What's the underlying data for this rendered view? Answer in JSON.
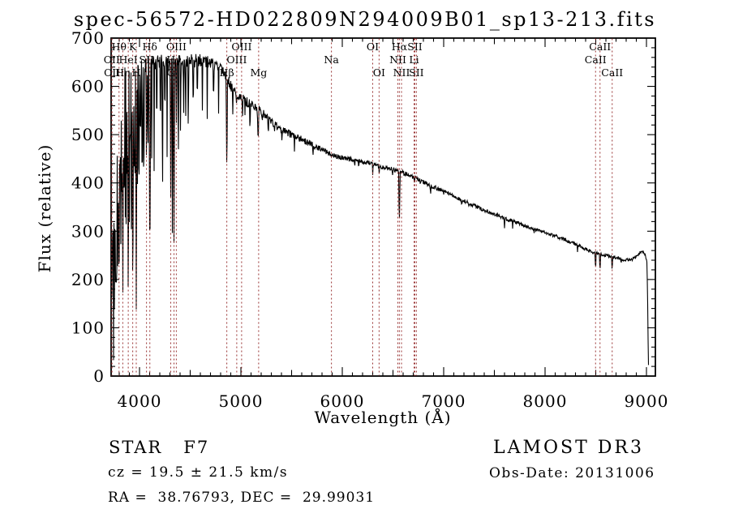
{
  "chart_data": {
    "type": "line",
    "title": "spec-56572-HD022809N294009B01_sp13-213.fits",
    "xlabel": "Wavelength (Å)",
    "ylabel": "Flux (relative)",
    "xlim": [
      3720,
      9088
    ],
    "ylim": [
      0,
      700
    ],
    "x_major_ticks": [
      4000,
      5000,
      6000,
      7000,
      8000,
      9000
    ],
    "x_minor_step": 100,
    "x_mid_step": 500,
    "y_major_ticks": [
      0,
      100,
      200,
      300,
      400,
      500,
      600,
      700
    ],
    "y_minor_step": 20,
    "grid": false,
    "line_color": "#000000",
    "marker_line_color": "#993333",
    "background_color": "#ffffff",
    "spectral_lines": [
      {
        "label": "Hθ",
        "wavelength": 3798,
        "row": 1
      },
      {
        "label": "K",
        "wavelength": 3933,
        "row": 1
      },
      {
        "label": "Hδ",
        "wavelength": 4102,
        "row": 1
      },
      {
        "label": "OIII",
        "wavelength": 4363,
        "row": 1
      },
      {
        "label": "OIII",
        "wavelength": 5007,
        "row": 1
      },
      {
        "label": "OI",
        "wavelength": 6300,
        "row": 1
      },
      {
        "label": "Hα",
        "wavelength": 6563,
        "row": 1
      },
      {
        "label": "SII",
        "wavelength": 6716,
        "row": 1
      },
      {
        "label": "CaII",
        "wavelength": 8542,
        "row": 1
      },
      {
        "label": "OII",
        "wavelength": 3726,
        "row": 2
      },
      {
        "label": "HeI",
        "wavelength": 3889,
        "row": 2
      },
      {
        "label": "SII",
        "wavelength": 4069,
        "row": 2
      },
      {
        "label": "Hγ",
        "wavelength": 4340,
        "row": 2
      },
      {
        "label": "OIII",
        "wavelength": 4959,
        "row": 2
      },
      {
        "label": "Na",
        "wavelength": 5893,
        "row": 2
      },
      {
        "label": "NII",
        "wavelength": 6548,
        "row": 2
      },
      {
        "label": "Li",
        "wavelength": 6708,
        "row": 2
      },
      {
        "label": "CaII",
        "wavelength": 8498,
        "row": 2
      },
      {
        "label": "OII",
        "wavelength": 3729,
        "row": 3
      },
      {
        "label": "Hη",
        "wavelength": 3835,
        "row": 3
      },
      {
        "label": "H",
        "wavelength": 3968,
        "row": 3
      },
      {
        "label": "G",
        "wavelength": 4308,
        "row": 3
      },
      {
        "label": "Hβ",
        "wavelength": 4861,
        "row": 3
      },
      {
        "label": "Mg",
        "wavelength": 5175,
        "row": 3
      },
      {
        "label": "OI",
        "wavelength": 6363,
        "row": 3
      },
      {
        "label": "NII",
        "wavelength": 6584,
        "row": 3
      },
      {
        "label": "SII",
        "wavelength": 6731,
        "row": 3
      },
      {
        "label": "CaII",
        "wavelength": 8662,
        "row": 3
      }
    ],
    "continuum": [
      [
        3720,
        480
      ],
      [
        3740,
        540
      ],
      [
        3760,
        575
      ],
      [
        3780,
        595
      ],
      [
        3800,
        610
      ],
      [
        3840,
        620
      ],
      [
        3880,
        628
      ],
      [
        3920,
        632
      ],
      [
        3960,
        628
      ],
      [
        4000,
        638
      ],
      [
        4060,
        645
      ],
      [
        4120,
        648
      ],
      [
        4200,
        652
      ],
      [
        4280,
        645
      ],
      [
        4360,
        650
      ],
      [
        4440,
        655
      ],
      [
        4520,
        652
      ],
      [
        4600,
        655
      ],
      [
        4700,
        648
      ],
      [
        4800,
        635
      ],
      [
        4860,
        618
      ],
      [
        4900,
        600
      ],
      [
        4950,
        588
      ],
      [
        5000,
        578
      ],
      [
        5100,
        562
      ],
      [
        5200,
        548
      ],
      [
        5300,
        528
      ],
      [
        5400,
        510
      ],
      [
        5500,
        500
      ],
      [
        5600,
        490
      ],
      [
        5700,
        480
      ],
      [
        5800,
        468
      ],
      [
        5900,
        458
      ],
      [
        6000,
        452
      ],
      [
        6100,
        448
      ],
      [
        6200,
        444
      ],
      [
        6300,
        440
      ],
      [
        6400,
        432
      ],
      [
        6500,
        428
      ],
      [
        6600,
        422
      ],
      [
        6700,
        412
      ],
      [
        6800,
        402
      ],
      [
        6900,
        392
      ],
      [
        7000,
        383
      ],
      [
        7100,
        373
      ],
      [
        7200,
        363
      ],
      [
        7300,
        353
      ],
      [
        7400,
        344
      ],
      [
        7500,
        335
      ],
      [
        7600,
        327
      ],
      [
        7700,
        319
      ],
      [
        7800,
        311
      ],
      [
        7900,
        304
      ],
      [
        8000,
        297
      ],
      [
        8100,
        290
      ],
      [
        8200,
        282
      ],
      [
        8300,
        273
      ],
      [
        8400,
        263
      ],
      [
        8500,
        254
      ],
      [
        8600,
        250
      ],
      [
        8700,
        245
      ],
      [
        8800,
        240
      ],
      [
        8860,
        242
      ],
      [
        8920,
        252
      ],
      [
        8960,
        260
      ],
      [
        8990,
        250
      ],
      [
        9005,
        235
      ],
      [
        9012,
        150
      ],
      [
        9018,
        40
      ],
      [
        9022,
        8
      ]
    ],
    "absorption_features": [
      [
        3722,
        120,
        5
      ],
      [
        3727,
        60,
        4
      ],
      [
        3733,
        180,
        4
      ],
      [
        3738,
        90,
        4
      ],
      [
        3744,
        30,
        5
      ],
      [
        3752,
        140,
        4
      ],
      [
        3758,
        70,
        4
      ],
      [
        3764,
        200,
        4
      ],
      [
        3770,
        18,
        6
      ],
      [
        3777,
        110,
        4
      ],
      [
        3784,
        230,
        4
      ],
      [
        3790,
        150,
        4
      ],
      [
        3798,
        65,
        6
      ],
      [
        3806,
        280,
        4
      ],
      [
        3815,
        180,
        4
      ],
      [
        3823,
        320,
        4
      ],
      [
        3830,
        240,
        4
      ],
      [
        3835,
        95,
        6
      ],
      [
        3842,
        300,
        4
      ],
      [
        3850,
        200,
        4
      ],
      [
        3860,
        330,
        4
      ],
      [
        3870,
        250,
        4
      ],
      [
        3879,
        350,
        4
      ],
      [
        3889,
        115,
        7
      ],
      [
        3900,
        320,
        4
      ],
      [
        3910,
        380,
        4
      ],
      [
        3920,
        300,
        4
      ],
      [
        3934,
        160,
        7
      ],
      [
        3947,
        380,
        4
      ],
      [
        3956,
        420,
        4
      ],
      [
        3968,
        140,
        7
      ],
      [
        3980,
        400,
        4
      ],
      [
        3995,
        350,
        4
      ],
      [
        4010,
        420,
        4
      ],
      [
        4026,
        330,
        5
      ],
      [
        4045,
        400,
        4
      ],
      [
        4069,
        420,
        5
      ],
      [
        4083,
        430,
        4
      ],
      [
        4102,
        200,
        8
      ],
      [
        4120,
        450,
        4
      ],
      [
        4144,
        430,
        4
      ],
      [
        4170,
        480,
        4
      ],
      [
        4206,
        460,
        4
      ],
      [
        4227,
        350,
        5
      ],
      [
        4250,
        500,
        4
      ],
      [
        4272,
        450,
        4
      ],
      [
        4308,
        370,
        6
      ],
      [
        4325,
        195,
        4
      ],
      [
        4340,
        280,
        7
      ],
      [
        4363,
        490,
        4
      ],
      [
        4383,
        430,
        5
      ],
      [
        4405,
        460,
        4
      ],
      [
        4435,
        510,
        4
      ],
      [
        4455,
        500,
        4
      ],
      [
        4481,
        490,
        5
      ],
      [
        4530,
        520,
        4
      ],
      [
        4570,
        540,
        4
      ],
      [
        4620,
        545,
        4
      ],
      [
        4668,
        535,
        4
      ],
      [
        4730,
        555,
        4
      ],
      [
        4780,
        545,
        4
      ],
      [
        4861,
        415,
        7
      ],
      [
        4920,
        545,
        4
      ],
      [
        4957,
        555,
        4
      ],
      [
        5015,
        535,
        4
      ],
      [
        5040,
        545,
        4
      ],
      [
        5090,
        500,
        5
      ],
      [
        5170,
        483,
        8
      ],
      [
        5210,
        520,
        4
      ],
      [
        5270,
        495,
        5
      ],
      [
        5330,
        505,
        4
      ],
      [
        5405,
        480,
        4
      ],
      [
        5528,
        468,
        4
      ],
      [
        5711,
        455,
        4
      ],
      [
        5893,
        450,
        7
      ],
      [
        6122,
        428,
        4
      ],
      [
        6162,
        430,
        4
      ],
      [
        6300,
        420,
        4
      ],
      [
        6363,
        418,
        4
      ],
      [
        6495,
        412,
        4
      ],
      [
        6563,
        312,
        7
      ],
      [
        6610,
        408,
        3
      ],
      [
        6710,
        398,
        3
      ],
      [
        6770,
        395,
        3
      ],
      [
        6870,
        378,
        6
      ],
      [
        7000,
        372,
        3
      ],
      [
        7180,
        352,
        5
      ],
      [
        7250,
        348,
        4
      ],
      [
        7600,
        308,
        7
      ],
      [
        7680,
        310,
        4
      ],
      [
        7890,
        298,
        3
      ],
      [
        8230,
        272,
        4
      ],
      [
        8320,
        262,
        4
      ],
      [
        8430,
        254,
        4
      ],
      [
        8498,
        216,
        4
      ],
      [
        8542,
        206,
        4
      ],
      [
        8582,
        240,
        3
      ],
      [
        8662,
        210,
        4
      ],
      [
        8750,
        232,
        3
      ]
    ],
    "noise_profile": [
      [
        3720,
        22
      ],
      [
        4000,
        18
      ],
      [
        4400,
        15
      ],
      [
        4800,
        12
      ],
      [
        5200,
        9
      ],
      [
        5600,
        7
      ],
      [
        6000,
        5
      ],
      [
        6600,
        4.5
      ],
      [
        7200,
        4
      ],
      [
        8000,
        3.5
      ],
      [
        9088,
        3
      ]
    ]
  },
  "footer": {
    "left": {
      "class_line": "STAR   F7",
      "cz_line": "cz = 19.5 ± 21.5 km/s",
      "radec_line": "RA =  38.76793, DEC =  29.99031"
    },
    "right": {
      "survey": "LAMOST DR3",
      "obs_date": "Obs-Date: 20131006"
    }
  }
}
